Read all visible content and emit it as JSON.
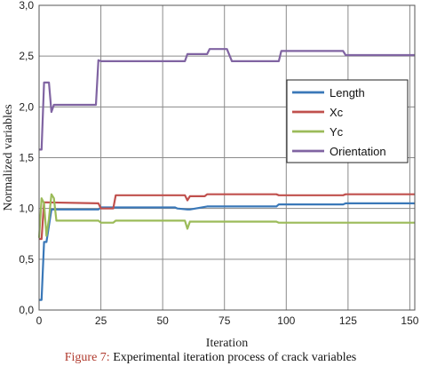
{
  "chart_data": {
    "type": "line",
    "xlabel": "Iteration",
    "ylabel": "Normalized variables",
    "xlim": [
      0,
      152
    ],
    "ylim": [
      0,
      3
    ],
    "xticks": [
      0,
      25,
      50,
      75,
      100,
      125,
      150
    ],
    "yticks": [
      "0,0",
      "0,5",
      "1,0",
      "1,5",
      "2,0",
      "2,5",
      "3,0"
    ],
    "ytick_values": [
      0,
      0.5,
      1.0,
      1.5,
      2.0,
      2.5,
      3.0
    ],
    "grid": true,
    "legend_position": "right",
    "series": [
      {
        "name": "Length",
        "color": "#3a78b8",
        "x": [
          0,
          1,
          2,
          3,
          5,
          6,
          24,
          25,
          30,
          31,
          55,
          56,
          60,
          61,
          68,
          69,
          96,
          97,
          123,
          124,
          152
        ],
        "y": [
          0.1,
          0.1,
          0.67,
          0.67,
          0.99,
          0.99,
          0.99,
          1.01,
          1.01,
          1.01,
          1.01,
          1.0,
          0.99,
          0.99,
          1.02,
          1.02,
          1.02,
          1.04,
          1.04,
          1.05,
          1.05
        ]
      },
      {
        "name": "Xc",
        "color": "#c0504d",
        "x": [
          0,
          1,
          2,
          3,
          24,
          25,
          30,
          31,
          59,
          60,
          61,
          67,
          68,
          96,
          97,
          123,
          124,
          152
        ],
        "y": [
          0.7,
          0.7,
          1.06,
          1.06,
          1.05,
          1.0,
          1.0,
          1.13,
          1.13,
          1.08,
          1.12,
          1.12,
          1.14,
          1.14,
          1.13,
          1.13,
          1.14,
          1.14
        ]
      },
      {
        "name": "Yc",
        "color": "#9bbb59",
        "x": [
          0,
          1,
          2,
          3,
          4,
          5,
          6,
          7,
          24,
          25,
          30,
          31,
          59,
          60,
          61,
          96,
          97,
          152
        ],
        "y": [
          0.71,
          1.1,
          1.05,
          0.73,
          0.9,
          1.14,
          1.1,
          0.88,
          0.88,
          0.86,
          0.86,
          0.88,
          0.88,
          0.8,
          0.87,
          0.87,
          0.86,
          0.86
        ]
      },
      {
        "name": "Orientation",
        "color": "#8064a2",
        "x": [
          0,
          1,
          2,
          3,
          4,
          5,
          6,
          7,
          23,
          24,
          25,
          59,
          60,
          68,
          69,
          76,
          78,
          97,
          98,
          123,
          124,
          152
        ],
        "y": [
          1.58,
          1.58,
          2.24,
          2.24,
          2.24,
          1.95,
          2.02,
          2.02,
          2.02,
          2.46,
          2.45,
          2.45,
          2.52,
          2.52,
          2.57,
          2.57,
          2.45,
          2.45,
          2.55,
          2.55,
          2.51,
          2.51
        ]
      }
    ]
  },
  "caption": {
    "figure_label": "Figure 7:",
    "text": " Experimental iteration process of crack variables"
  }
}
